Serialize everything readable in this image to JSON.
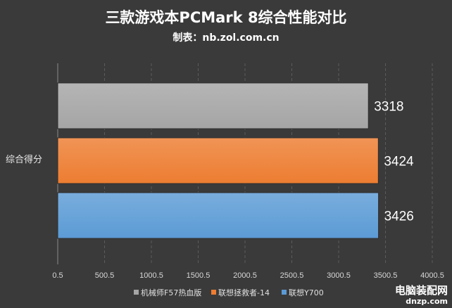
{
  "chart_data": {
    "type": "bar",
    "orientation": "horizontal",
    "title": "三款游戏本PCMark 8综合性能对比",
    "subtitle": "制表：nb.zol.com.cn",
    "categories": [
      "综合得分"
    ],
    "series": [
      {
        "name": "机械师F57热血版",
        "values": [
          3318
        ],
        "label": "3318",
        "color": "#a5a5a5"
      },
      {
        "name": "联想拯救者-14",
        "values": [
          3424
        ],
        "label": "3424",
        "color": "#ed7d31"
      },
      {
        "name": "联想Y700",
        "values": [
          3426
        ],
        "label": "3426",
        "color": "#5b9bd5"
      }
    ],
    "xlim": [
      0.5,
      4000.5
    ],
    "xticks": [
      "0.5",
      "500.5",
      "1000.5",
      "1500.5",
      "2000.5",
      "2500.5",
      "3000.5",
      "3500.5",
      "4000.5"
    ],
    "xtick_values": [
      0.5,
      500.5,
      1000.5,
      1500.5,
      2000.5,
      2500.5,
      3000.5,
      3500.5,
      4000.5
    ],
    "grid": true,
    "legend_position": "bottom"
  },
  "watermark": {
    "main": "电脑装配网",
    "sub": "dnzp.com"
  }
}
